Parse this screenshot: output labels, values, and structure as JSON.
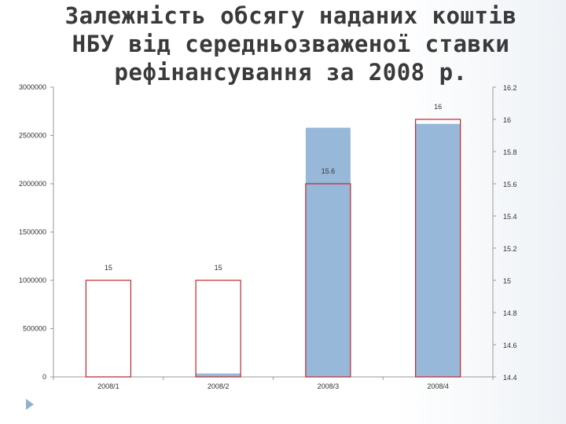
{
  "title_lines": [
    "Залежність обсягу наданих коштів",
    "НБУ від середньозваженої ставки",
    "рефінансування за 2008 р."
  ],
  "colors": {
    "volume_fill": "#8fb2d6",
    "rate_stroke": "#c0272d",
    "axis": "#9a9a9a"
  },
  "chart_data": {
    "type": "bar",
    "categories": [
      "2008/1",
      "2008/2",
      "2008/3",
      "2008/4"
    ],
    "series": [
      {
        "axis": "left",
        "values": [
          5000,
          35000,
          2580000,
          2620000
        ]
      },
      {
        "axis": "right",
        "values": [
          15,
          15,
          15.6,
          16
        ]
      }
    ],
    "data_labels": [
      "15",
      "15",
      "15.6",
      "16"
    ],
    "ylim_left": [
      0,
      3000000
    ],
    "yticks_left": [
      0,
      500000,
      1000000,
      1500000,
      2000000,
      2500000,
      3000000
    ],
    "ytick_labels_left": [
      "0",
      "500000",
      "1000000",
      "1500000",
      "2000000",
      "2500000",
      "3000000"
    ],
    "ylim_right": [
      14.4,
      16.2
    ],
    "yticks_right": [
      14.4,
      14.6,
      14.8,
      15,
      15.2,
      15.4,
      15.6,
      15.8,
      16,
      16.2
    ],
    "ytick_labels_right": [
      "14.4",
      "14.6",
      "14.8",
      "15",
      "15.2",
      "15.4",
      "15.6",
      "15.8",
      "16",
      "16.2"
    ],
    "grid": false
  }
}
